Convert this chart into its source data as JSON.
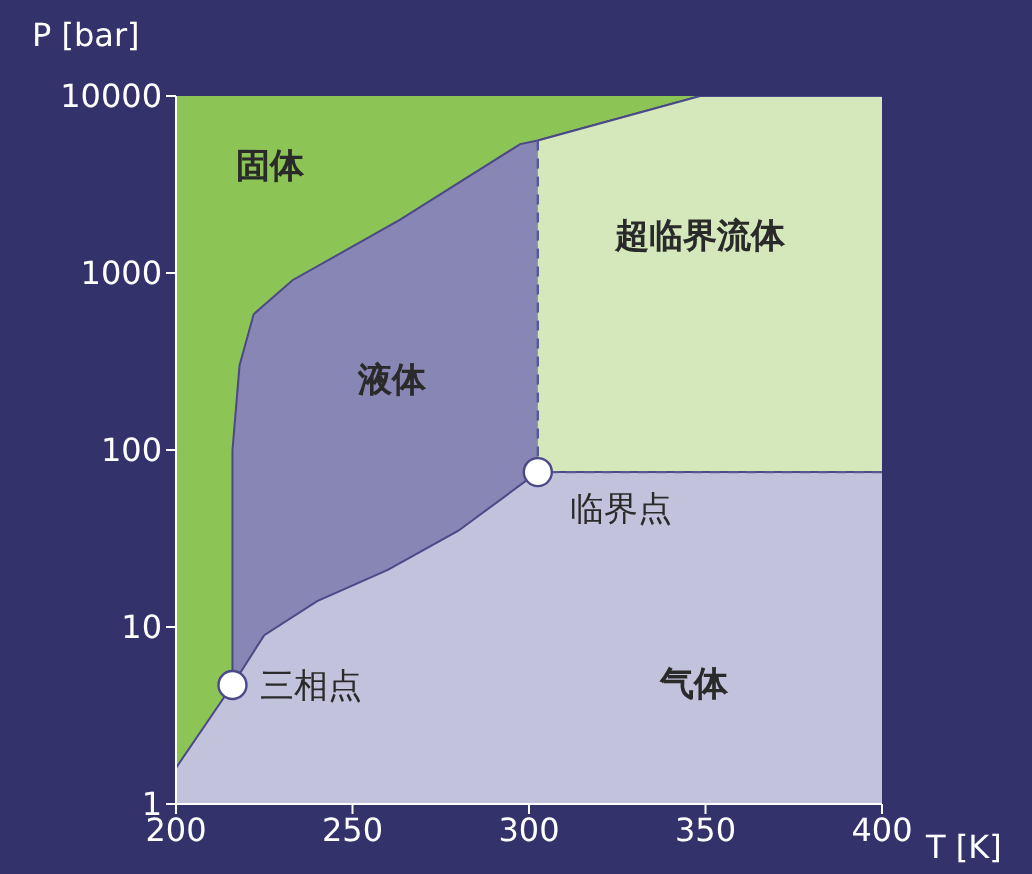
{
  "chart_data": {
    "type": "area",
    "xlabel": "T [K]",
    "ylabel": "P [bar]",
    "xlim": [
      200,
      400
    ],
    "xticks": [
      200,
      250,
      300,
      350,
      400
    ],
    "ylim": [
      1,
      10000
    ],
    "yticks": [
      1,
      10,
      100,
      1000,
      10000
    ],
    "log": true,
    "grid": false,
    "legend": false,
    "series": [
      {
        "color": "#8cc556",
        "x": [
          200,
          400
        ],
        "values": [
          10000,
          10000
        ]
      },
      {
        "color": "#8886b4",
        "x": [
          216,
          216,
          218,
          222,
          233,
          263.5,
          297.5,
          302.5,
          348.5,
          400
        ],
        "values": [
          4.7,
          100,
          300,
          585,
          910,
          2000,
          5350,
          5600,
          10000,
          10000
        ]
      },
      {
        "color": "#d4e8bc",
        "x": [
          302.5,
          348.5,
          400
        ],
        "values": [
          5600,
          10000,
          10000
        ]
      },
      {
        "color": "#c3c2dc",
        "x": [
          200,
          216,
          225,
          240,
          260,
          280,
          302.5,
          400
        ],
        "values": [
          1.6,
          4.7,
          9,
          14,
          21,
          35,
          75,
          75
        ]
      },
      {
        "type": "line",
        "color": "#5a5890",
        "line_style": "dashed",
        "x": [
          302.5,
          302.5,
          400
        ],
        "values": [
          5600,
          75,
          75
        ]
      },
      {
        "type": "scatter",
        "color": "#ffffff",
        "marker": "circle",
        "x": [
          216,
          302.5
        ],
        "values": [
          4.7,
          75
        ]
      }
    ],
    "annotations": [
      "固体",
      "液体",
      "超临界流体",
      "气体",
      {
        "text": "三相点",
        "x": 216,
        "y": 4.7
      },
      {
        "text": "临界点",
        "x": 302.5,
        "y": 75
      }
    ]
  }
}
